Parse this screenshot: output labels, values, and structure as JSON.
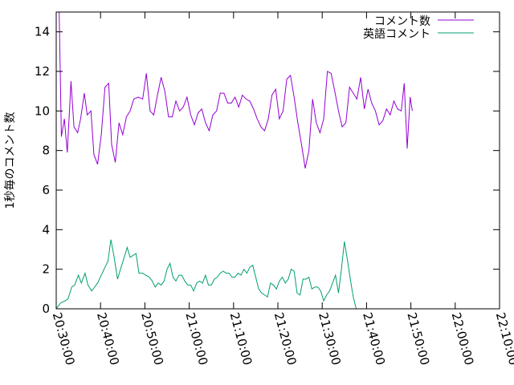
{
  "chart_data": {
    "type": "line",
    "ylabel": "1秒毎のコメント数",
    "ylim": [
      0,
      15
    ],
    "yticks": [
      0,
      2,
      4,
      6,
      8,
      10,
      12,
      14
    ],
    "xlim": [
      "20:30:00",
      "22:10:00"
    ],
    "xticks": [
      "20:30:00",
      "20:40:00",
      "20:50:00",
      "21:00:00",
      "21:10:00",
      "21:20:00",
      "21:30:00",
      "21:40:00",
      "21:50:00",
      "22:00:00",
      "22:10:00"
    ],
    "legend_position": "top-right",
    "grid": false,
    "series": [
      {
        "name": "コメント数",
        "color": "#9400d3",
        "points": [
          [
            "20:30:00",
            15.0
          ],
          [
            "20:30:40",
            15.0
          ],
          [
            "20:31:10",
            8.7
          ],
          [
            "20:31:50",
            9.6
          ],
          [
            "20:32:30",
            7.9
          ],
          [
            "20:33:20",
            11.5
          ],
          [
            "20:34:00",
            9.2
          ],
          [
            "20:34:50",
            8.9
          ],
          [
            "20:35:30",
            9.6
          ],
          [
            "20:36:20",
            10.9
          ],
          [
            "20:37:00",
            9.8
          ],
          [
            "20:37:50",
            10.0
          ],
          [
            "20:38:30",
            7.8
          ],
          [
            "20:39:20",
            7.3
          ],
          [
            "20:40:10",
            8.8
          ],
          [
            "20:41:00",
            11.2
          ],
          [
            "20:41:50",
            11.4
          ],
          [
            "20:42:30",
            8.3
          ],
          [
            "20:43:20",
            7.4
          ],
          [
            "20:44:10",
            9.4
          ],
          [
            "20:45:00",
            8.8
          ],
          [
            "20:45:50",
            9.7
          ],
          [
            "20:46:40",
            10.0
          ],
          [
            "20:47:30",
            10.6
          ],
          [
            "20:48:30",
            10.7
          ],
          [
            "20:49:30",
            10.6
          ],
          [
            "20:50:20",
            11.9
          ],
          [
            "20:51:10",
            10.0
          ],
          [
            "20:52:00",
            9.8
          ],
          [
            "20:52:50",
            10.8
          ],
          [
            "20:53:40",
            11.7
          ],
          [
            "20:54:30",
            11.0
          ],
          [
            "20:55:20",
            9.7
          ],
          [
            "20:56:10",
            9.7
          ],
          [
            "20:57:00",
            10.5
          ],
          [
            "20:57:50",
            10.0
          ],
          [
            "20:58:40",
            10.2
          ],
          [
            "20:59:30",
            10.7
          ],
          [
            "21:00:20",
            9.8
          ],
          [
            "21:01:10",
            9.3
          ],
          [
            "21:02:00",
            9.9
          ],
          [
            "21:02:50",
            10.1
          ],
          [
            "21:03:40",
            9.4
          ],
          [
            "21:04:30",
            9.0
          ],
          [
            "21:05:20",
            9.8
          ],
          [
            "21:06:10",
            10.0
          ],
          [
            "21:07:00",
            10.9
          ],
          [
            "21:07:50",
            10.9
          ],
          [
            "21:08:40",
            10.4
          ],
          [
            "21:09:30",
            10.4
          ],
          [
            "21:10:20",
            10.7
          ],
          [
            "21:11:10",
            10.2
          ],
          [
            "21:12:00",
            10.8
          ],
          [
            "21:12:50",
            10.6
          ],
          [
            "21:13:40",
            10.5
          ],
          [
            "21:14:30",
            10.1
          ],
          [
            "21:15:20",
            9.6
          ],
          [
            "21:16:10",
            9.2
          ],
          [
            "21:17:00",
            9.0
          ],
          [
            "21:17:50",
            9.6
          ],
          [
            "21:18:40",
            10.8
          ],
          [
            "21:19:30",
            11.1
          ],
          [
            "21:20:20",
            9.6
          ],
          [
            "21:21:10",
            10.0
          ],
          [
            "21:22:00",
            11.6
          ],
          [
            "21:22:50",
            11.8
          ],
          [
            "21:23:40",
            10.7
          ],
          [
            "21:24:30",
            9.4
          ],
          [
            "21:25:20",
            8.3
          ],
          [
            "21:26:10",
            7.1
          ],
          [
            "21:27:00",
            8.0
          ],
          [
            "21:27:50",
            10.6
          ],
          [
            "21:28:40",
            9.4
          ],
          [
            "21:29:30",
            8.9
          ],
          [
            "21:30:20",
            9.6
          ],
          [
            "21:31:10",
            12.0
          ],
          [
            "21:32:00",
            11.9
          ],
          [
            "21:32:50",
            11.0
          ],
          [
            "21:33:40",
            10.0
          ],
          [
            "21:34:30",
            9.2
          ],
          [
            "21:35:20",
            9.4
          ],
          [
            "21:36:10",
            11.2
          ],
          [
            "21:37:00",
            10.9
          ],
          [
            "21:37:50",
            10.6
          ],
          [
            "21:38:40",
            11.7
          ],
          [
            "21:39:30",
            10.1
          ],
          [
            "21:40:20",
            11.1
          ],
          [
            "21:41:10",
            10.4
          ],
          [
            "21:42:00",
            10.0
          ],
          [
            "21:42:50",
            9.3
          ],
          [
            "21:43:40",
            9.5
          ],
          [
            "21:44:30",
            10.1
          ],
          [
            "21:45:20",
            9.8
          ],
          [
            "21:46:10",
            10.5
          ],
          [
            "21:47:00",
            10.1
          ],
          [
            "21:47:50",
            10.0
          ],
          [
            "21:48:30",
            11.4
          ],
          [
            "21:49:10",
            8.1
          ],
          [
            "21:49:50",
            10.7
          ],
          [
            "21:50:20",
            10.0
          ]
        ]
      },
      {
        "name": "英語コメント",
        "color": "#009e73",
        "points": [
          [
            "20:30:00",
            0.0
          ],
          [
            "20:31:00",
            0.3
          ],
          [
            "20:32:00",
            0.4
          ],
          [
            "20:32:40",
            0.5
          ],
          [
            "20:33:30",
            1.1
          ],
          [
            "20:34:10",
            1.2
          ],
          [
            "20:35:00",
            1.7
          ],
          [
            "20:35:40",
            1.3
          ],
          [
            "20:36:30",
            1.8
          ],
          [
            "20:37:10",
            1.2
          ],
          [
            "20:38:00",
            0.9
          ],
          [
            "20:38:40",
            1.1
          ],
          [
            "20:39:20",
            1.3
          ],
          [
            "20:40:10",
            1.7
          ],
          [
            "20:41:00",
            2.1
          ],
          [
            "20:41:40",
            2.4
          ],
          [
            "20:42:20",
            3.5
          ],
          [
            "20:43:00",
            2.7
          ],
          [
            "20:43:50",
            1.5
          ],
          [
            "20:44:30",
            2.0
          ],
          [
            "20:45:20",
            2.6
          ],
          [
            "20:46:00",
            3.1
          ],
          [
            "20:46:40",
            2.6
          ],
          [
            "20:47:20",
            2.7
          ],
          [
            "20:48:00",
            2.8
          ],
          [
            "20:48:40",
            1.8
          ],
          [
            "20:49:30",
            1.8
          ],
          [
            "20:50:10",
            1.7
          ],
          [
            "20:51:00",
            1.6
          ],
          [
            "20:51:40",
            1.4
          ],
          [
            "20:52:20",
            1.1
          ],
          [
            "20:53:00",
            1.3
          ],
          [
            "20:53:40",
            1.2
          ],
          [
            "20:54:20",
            1.4
          ],
          [
            "20:55:00",
            2.0
          ],
          [
            "20:55:40",
            2.3
          ],
          [
            "20:56:20",
            1.6
          ],
          [
            "20:57:00",
            1.4
          ],
          [
            "20:57:40",
            1.7
          ],
          [
            "20:58:20",
            1.7
          ],
          [
            "20:59:00",
            1.4
          ],
          [
            "20:59:40",
            1.2
          ],
          [
            "21:00:20",
            1.2
          ],
          [
            "21:01:00",
            0.9
          ],
          [
            "21:01:40",
            1.3
          ],
          [
            "21:02:20",
            1.4
          ],
          [
            "21:03:00",
            1.3
          ],
          [
            "21:03:40",
            1.7
          ],
          [
            "21:04:20",
            1.2
          ],
          [
            "21:05:00",
            1.2
          ],
          [
            "21:05:40",
            1.5
          ],
          [
            "21:06:20",
            1.6
          ],
          [
            "21:07:00",
            1.8
          ],
          [
            "21:07:40",
            1.9
          ],
          [
            "21:08:20",
            1.8
          ],
          [
            "21:09:00",
            1.8
          ],
          [
            "21:09:40",
            1.6
          ],
          [
            "21:10:20",
            1.6
          ],
          [
            "21:11:00",
            1.8
          ],
          [
            "21:11:40",
            1.7
          ],
          [
            "21:12:20",
            2.0
          ],
          [
            "21:13:00",
            1.8
          ],
          [
            "21:13:40",
            2.1
          ],
          [
            "21:14:20",
            2.2
          ],
          [
            "21:15:00",
            1.6
          ],
          [
            "21:15:40",
            1.0
          ],
          [
            "21:16:20",
            0.8
          ],
          [
            "21:17:00",
            0.7
          ],
          [
            "21:17:40",
            0.6
          ],
          [
            "21:18:20",
            1.3
          ],
          [
            "21:19:00",
            1.2
          ],
          [
            "21:19:40",
            1.0
          ],
          [
            "21:20:20",
            1.4
          ],
          [
            "21:21:00",
            1.6
          ],
          [
            "21:21:40",
            1.3
          ],
          [
            "21:22:20",
            1.5
          ],
          [
            "21:23:00",
            2.0
          ],
          [
            "21:23:40",
            1.9
          ],
          [
            "21:24:20",
            0.8
          ],
          [
            "21:25:00",
            0.7
          ],
          [
            "21:25:40",
            1.5
          ],
          [
            "21:26:20",
            1.5
          ],
          [
            "21:27:00",
            1.6
          ],
          [
            "21:27:40",
            1.0
          ],
          [
            "21:28:20",
            1.1
          ],
          [
            "21:29:00",
            1.1
          ],
          [
            "21:29:40",
            0.9
          ],
          [
            "21:30:20",
            0.4
          ],
          [
            "21:31:00",
            0.7
          ],
          [
            "21:31:40",
            0.9
          ],
          [
            "21:32:20",
            1.3
          ],
          [
            "21:33:00",
            1.7
          ],
          [
            "21:33:40",
            0.8
          ],
          [
            "21:34:20",
            2.0
          ],
          [
            "21:35:00",
            3.4
          ],
          [
            "21:35:40",
            2.5
          ],
          [
            "21:36:20",
            1.5
          ],
          [
            "21:37:00",
            0.6
          ],
          [
            "21:37:40",
            0.0
          ]
        ]
      }
    ]
  }
}
